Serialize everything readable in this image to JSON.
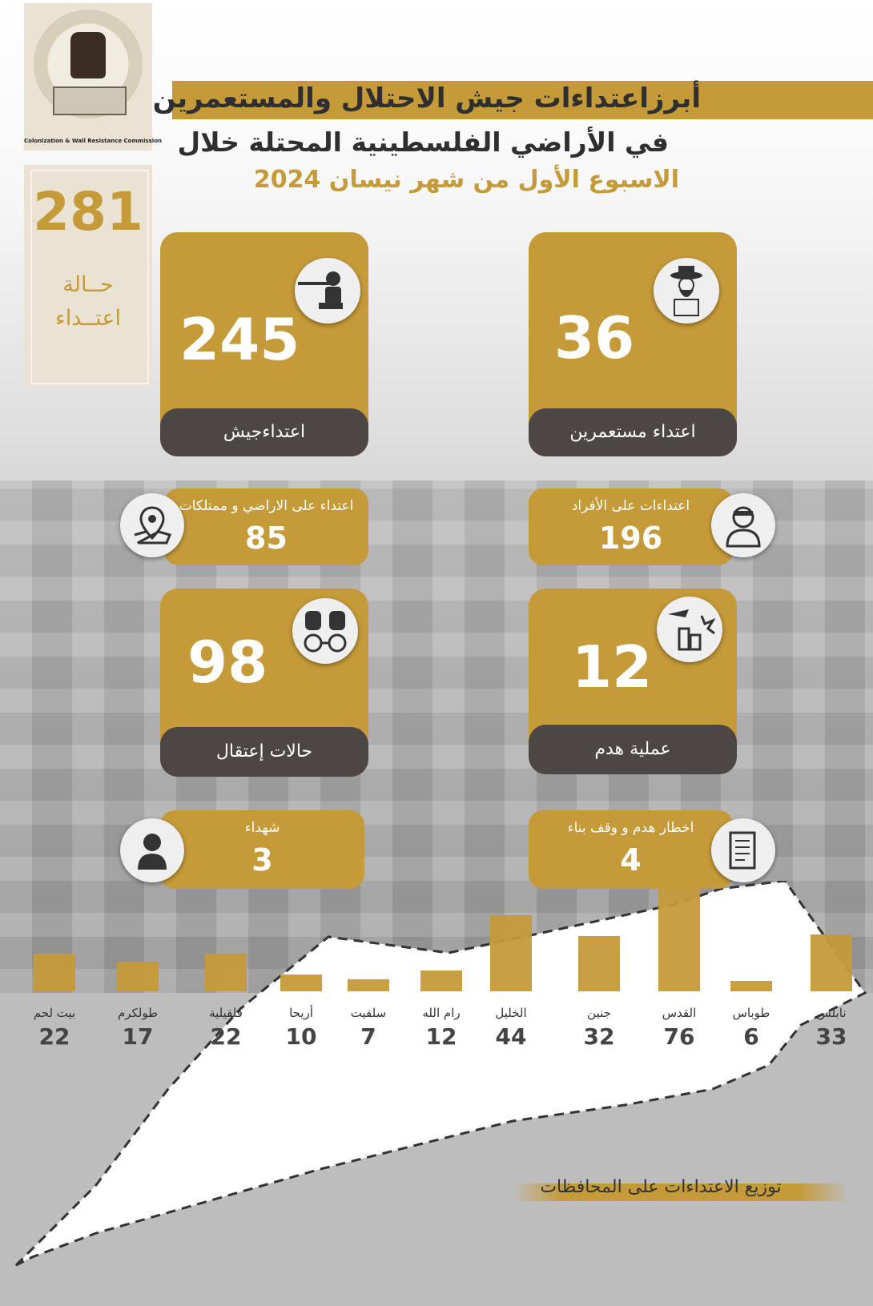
{
  "logo": {
    "caption": "Colonization & Wall Resistance Commission"
  },
  "total": {
    "number": "281",
    "line1": "حــالة",
    "line2": "اعتــداء"
  },
  "title": {
    "line1": "أبرزاعتداءات جيش الاحتلال والمستعمرين",
    "line2": "في الأراضي الفلسطينية المحتلة خلال",
    "line3": "الاسبوع الأول  من شهر نيسان  2024"
  },
  "cards": {
    "army": {
      "value": "245",
      "label": "اعتداءجيش",
      "icon": "soldier-icon"
    },
    "settlers": {
      "value": "36",
      "label": "اعتداء مستعمرين",
      "icon": "settler-icon"
    },
    "land": {
      "value": "85",
      "label": "اعتداء على الاراضي و ممتلكات",
      "icon": "location-pin-icon"
    },
    "people": {
      "value": "196",
      "label": "اعتداءات على الأفراد",
      "icon": "person-bandage-icon"
    },
    "arrests": {
      "value": "98",
      "label": "حالات إعتقال",
      "icon": "handcuffs-icon"
    },
    "demolition": {
      "value": "12",
      "label": "عملية  هدم",
      "icon": "demolition-icon"
    },
    "martyrs": {
      "value": "3",
      "label": "شهداء",
      "icon": "person-icon"
    },
    "notices": {
      "value": "4",
      "label": "اخطار  هدم و وقف بناء",
      "icon": "document-icon"
    }
  },
  "chart_data": {
    "type": "bar",
    "title": "توزيع الاعتداءات على المحافظات",
    "categories": [
      "بيت لحم",
      "طولكرم",
      "قلقيلية",
      "أريحا",
      "سلفيت",
      "رام الله",
      "الخليل",
      "جنين",
      "القدس",
      "طوباس",
      "نابلس"
    ],
    "values": [
      22,
      17,
      22,
      10,
      7,
      12,
      44,
      32,
      76,
      6,
      33
    ]
  },
  "colors": {
    "accent": "#c59a39",
    "dark": "#4c4744"
  }
}
